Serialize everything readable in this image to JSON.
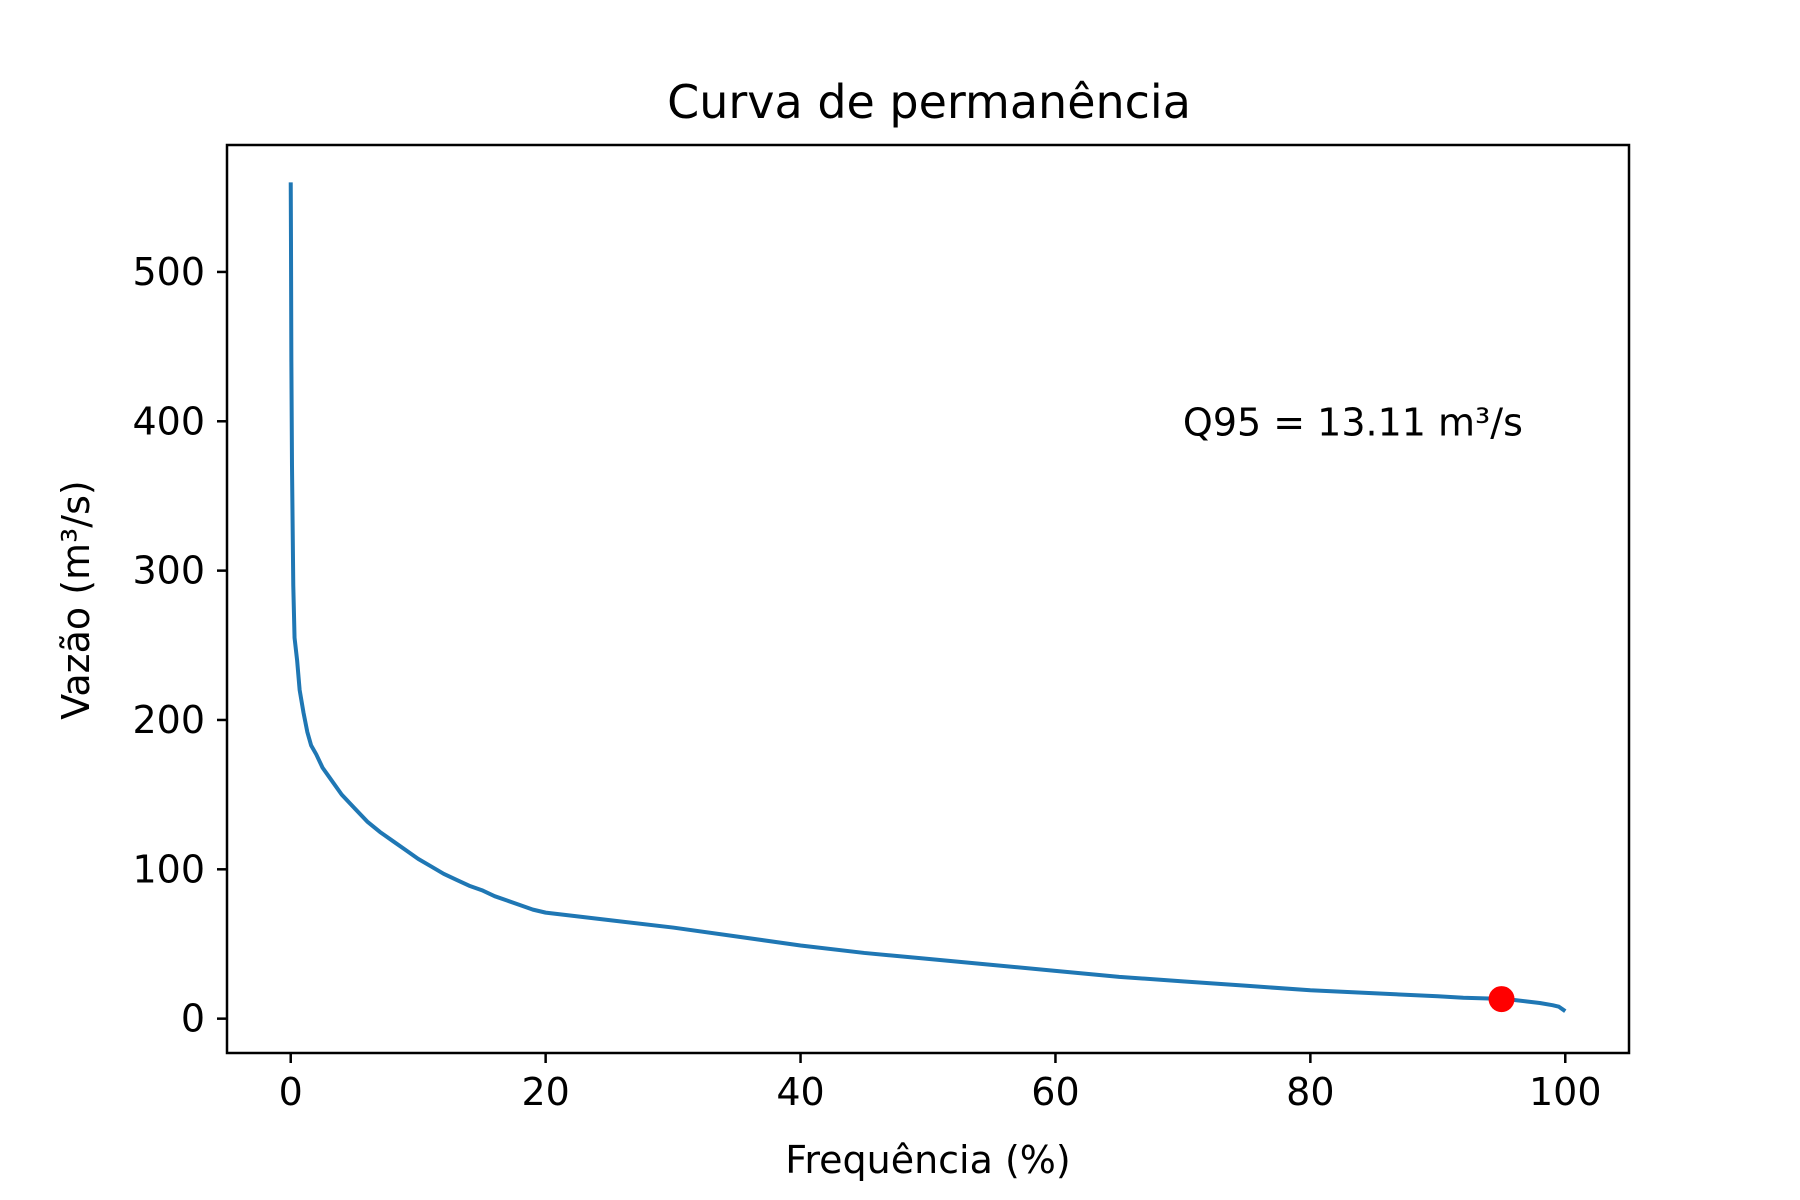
{
  "chart_data": {
    "type": "line",
    "title": "Curva de permanência",
    "xlabel": "Frequência (%)",
    "ylabel": "Vazão (m³/s)",
    "xlim": [
      -5,
      105
    ],
    "ylim": [
      -23,
      585
    ],
    "xticks": [
      0,
      20,
      40,
      60,
      80,
      100
    ],
    "xtick_labels": [
      "0",
      "20",
      "40",
      "60",
      "80",
      "100"
    ],
    "yticks": [
      0,
      100,
      200,
      300,
      400,
      500
    ],
    "ytick_labels": [
      "0",
      "100",
      "200",
      "300",
      "400",
      "500"
    ],
    "grid": false,
    "series": [
      {
        "color": "#1f77b4",
        "x": [
          0,
          0.02,
          0.05,
          0.1,
          0.2,
          0.3,
          0.5,
          0.7,
          1.0,
          1.3,
          1.6,
          2.0,
          2.5,
          3.0,
          4.0,
          5.0,
          6.0,
          7.0,
          8.0,
          9.0,
          10.0,
          11.0,
          12.0,
          13.0,
          14.0,
          15.0,
          16.0,
          17.0,
          18.0,
          19.0,
          20.0,
          22.0,
          25.0,
          30.0,
          35.0,
          40.0,
          45.0,
          50.0,
          55.0,
          60.0,
          65.0,
          70.0,
          75.0,
          80.0,
          85.0,
          90.0,
          92.0,
          94.0,
          95.0,
          96.0,
          97.0,
          98.0,
          99.0,
          99.5,
          100.0
        ],
        "y": [
          560,
          520,
          440,
          370,
          290,
          255,
          240,
          220,
          205,
          192,
          183,
          177,
          168,
          162,
          150,
          141,
          132,
          125,
          119,
          113,
          107,
          102,
          97,
          93,
          89,
          86,
          82,
          79,
          76,
          73,
          71,
          69,
          66,
          61,
          55,
          49,
          44,
          40,
          36,
          32,
          28,
          25,
          22,
          19,
          17,
          15,
          14,
          13.5,
          13.11,
          12.5,
          11.5,
          10.5,
          9,
          8,
          5
        ]
      }
    ],
    "highlight_point": {
      "x": 95,
      "y": 13.11,
      "color": "#ff0000"
    },
    "annotation": {
      "text": "Q95 = 13.11 m³/s",
      "x": 70,
      "y": 400
    },
    "colors": {
      "line": "#1f77b4",
      "point": "#ff0000",
      "axes": "#000000",
      "background": "#ffffff"
    }
  }
}
